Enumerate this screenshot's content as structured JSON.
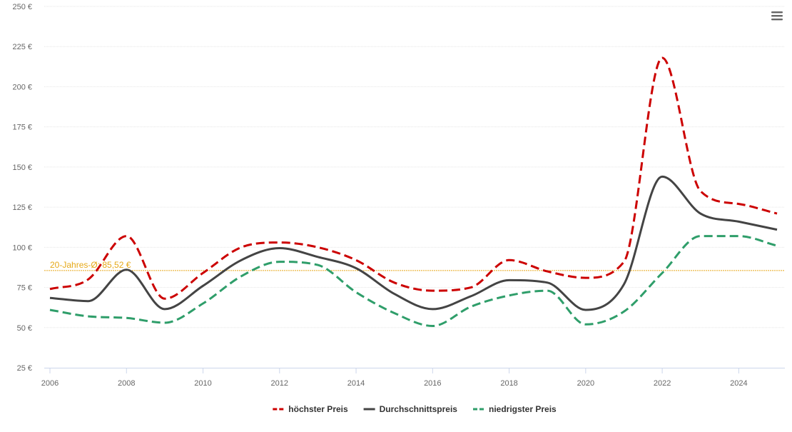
{
  "chart_data": {
    "type": "line",
    "x": [
      2006,
      2007,
      2008,
      2009,
      2010,
      2011,
      2012,
      2013,
      2014,
      2015,
      2016,
      2017,
      2018,
      2019,
      2020,
      2021,
      2022,
      2023,
      2024,
      2025
    ],
    "x_ticks": [
      "2006",
      "2008",
      "2010",
      "2012",
      "2014",
      "2016",
      "2018",
      "2020",
      "2022",
      "2024"
    ],
    "y_ticks": [
      "25 €",
      "50 €",
      "75 €",
      "100 €",
      "125 €",
      "150 €",
      "175 €",
      "200 €",
      "225 €",
      "250 €"
    ],
    "ylim": [
      25,
      250
    ],
    "xlim": [
      2006,
      2025
    ],
    "grid": true,
    "legend_position": "bottom-center",
    "series": [
      {
        "name": "höchster Preis",
        "color": "#cc0000",
        "style": "dashed",
        "values": [
          74,
          80,
          107,
          68,
          84,
          100,
          103,
          100,
          92,
          78,
          73,
          75,
          92,
          85,
          81,
          91,
          218,
          135,
          127,
          121
        ]
      },
      {
        "name": "Durchschnittspreis",
        "color": "#444444",
        "style": "solid",
        "values": [
          68.5,
          66.5,
          86,
          61.5,
          76,
          92,
          99.5,
          94,
          87,
          71,
          61.5,
          69.5,
          79.5,
          78,
          61,
          77,
          144,
          121,
          116,
          111
        ]
      },
      {
        "name": "niedrigster Preis",
        "color": "#2f9e6a",
        "style": "dashed",
        "values": [
          61,
          57,
          56,
          53,
          65,
          82,
          91,
          89,
          72,
          59,
          51,
          63,
          70,
          73,
          52,
          60,
          84,
          107,
          107,
          101
        ]
      }
    ],
    "reference_line": {
      "value": 85.52,
      "label": "20-Jahres-Ø: 85,52 €",
      "color": "#e6a817"
    }
  },
  "menu_icon": "hamburger-menu-icon"
}
